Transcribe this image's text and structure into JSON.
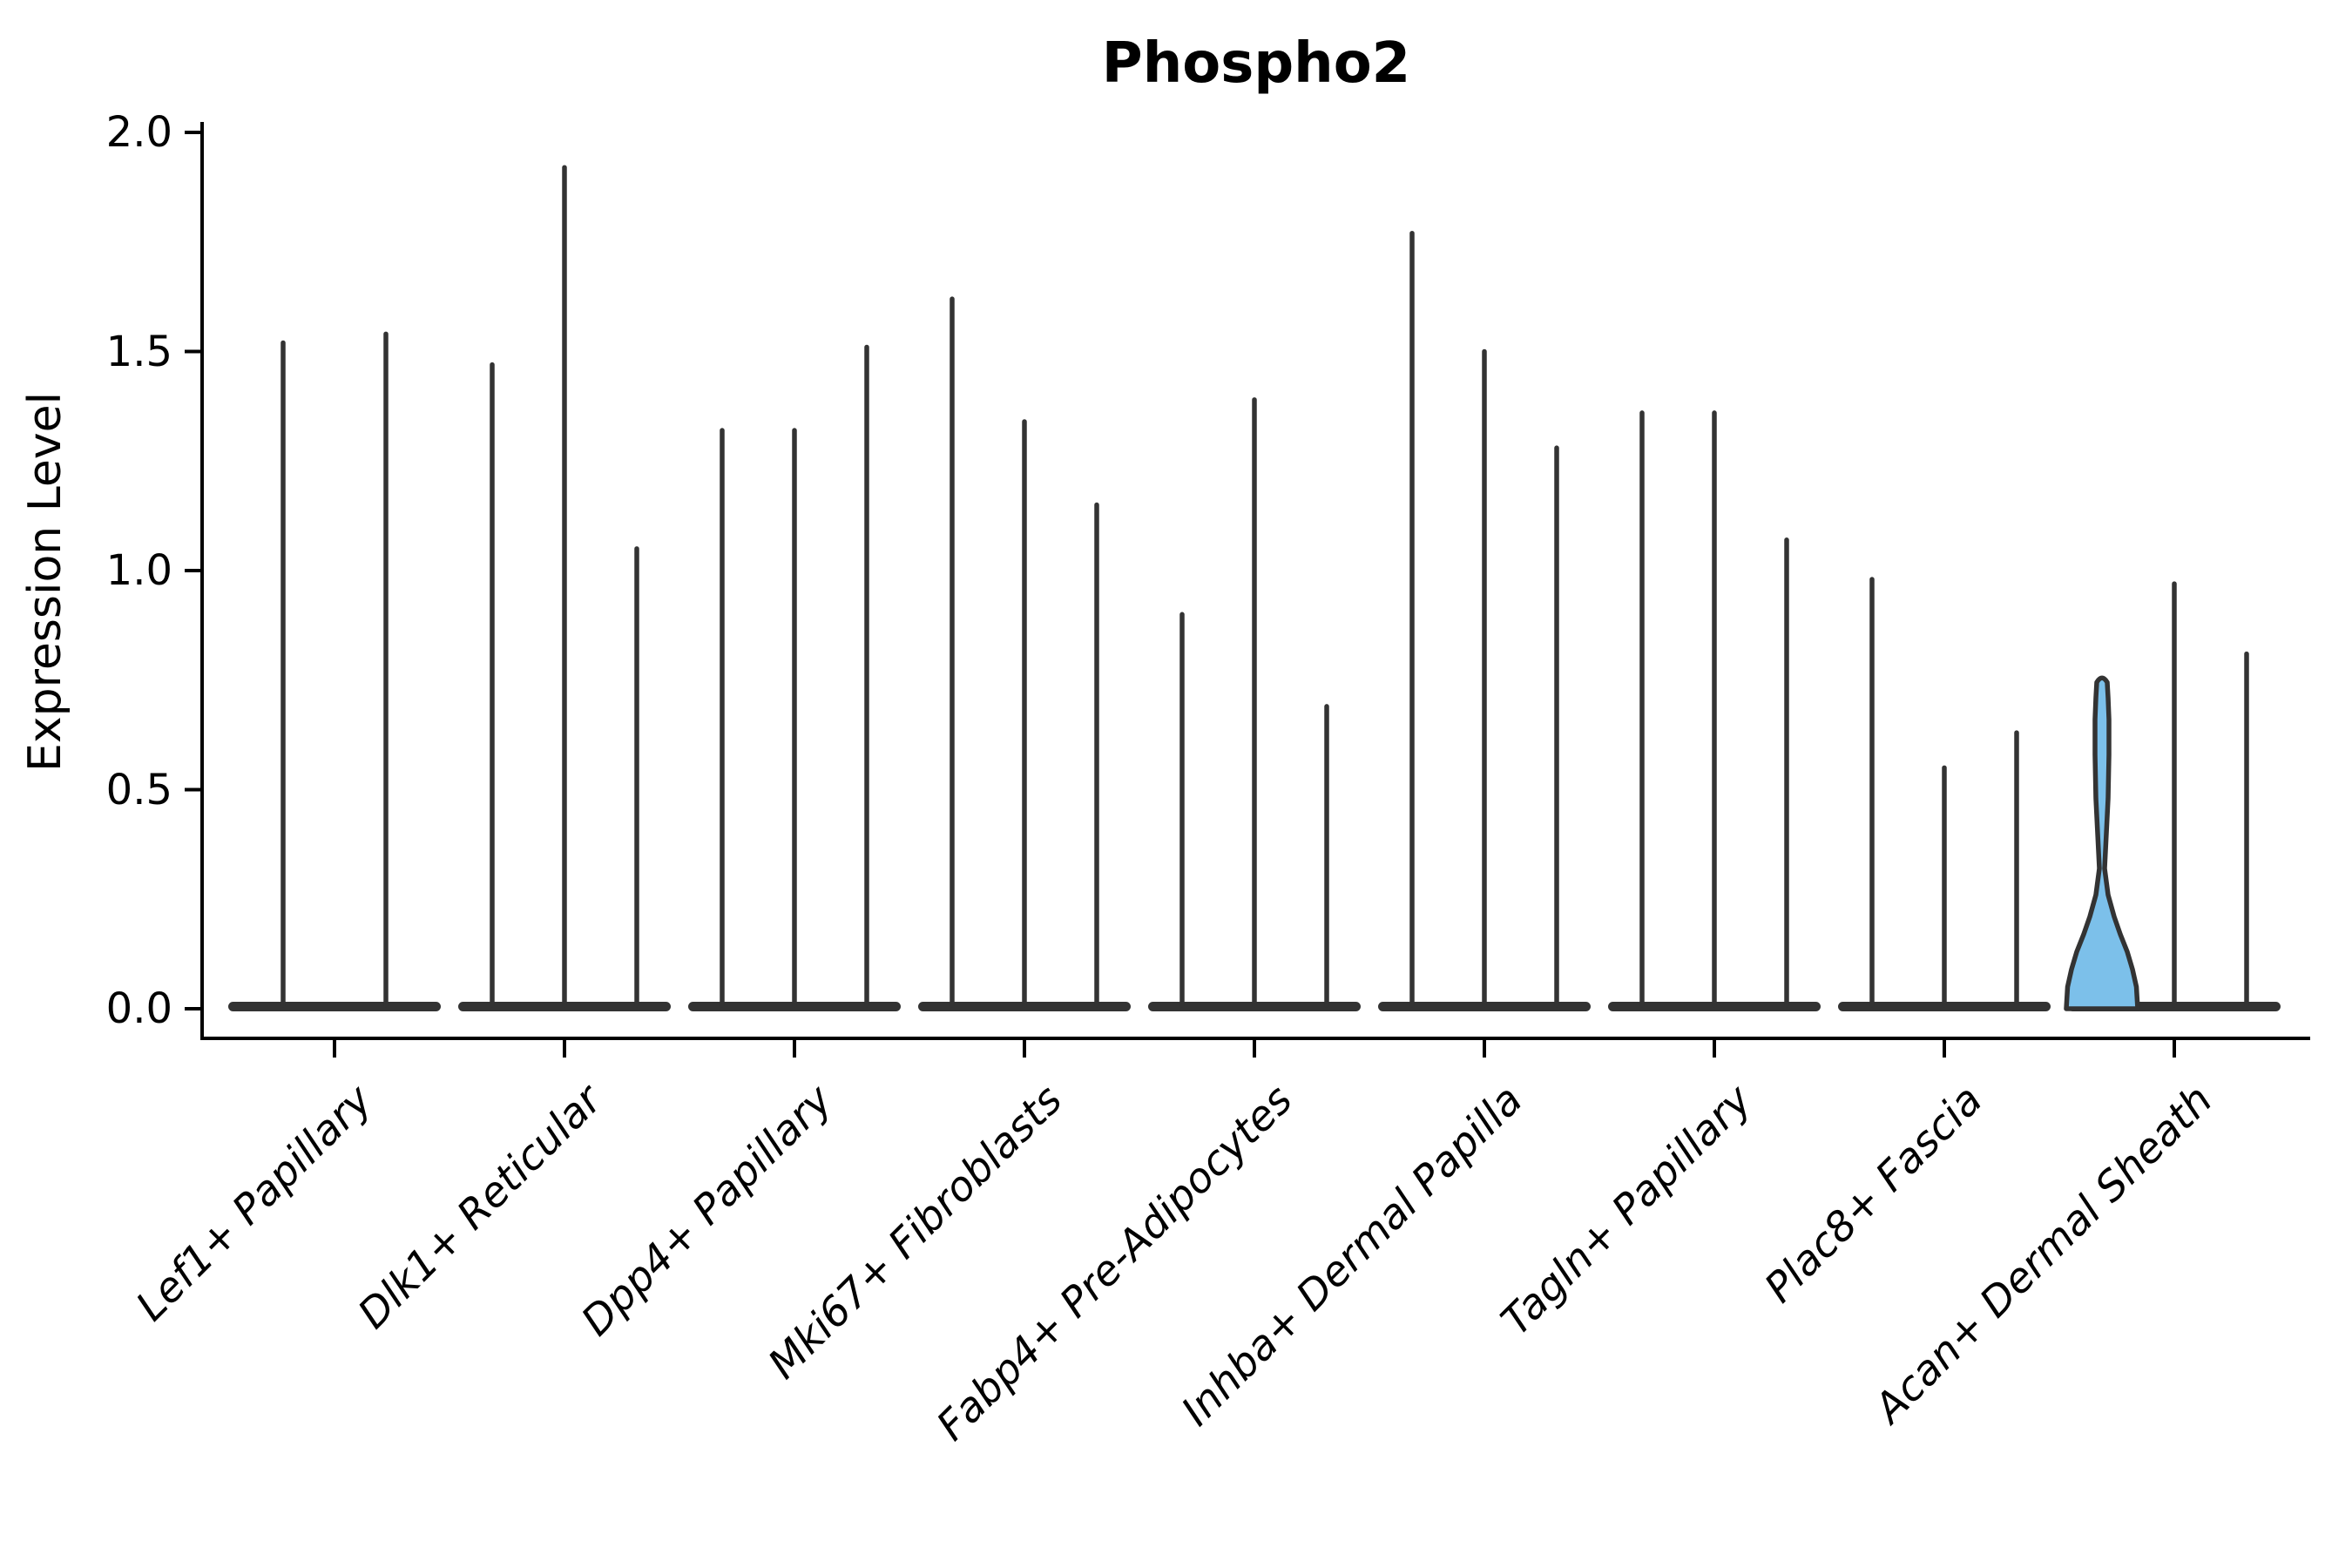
{
  "chart_data": {
    "type": "violin",
    "title": "Phospho2",
    "ylabel": "Expression Level",
    "xlabel": "",
    "ylim": [
      0.0,
      2.0
    ],
    "yticks": [
      0.0,
      0.5,
      1.0,
      1.5,
      2.0
    ],
    "ytick_labels": [
      "0.0",
      "0.5",
      "1.0",
      "1.5",
      "2.0"
    ],
    "grid": false,
    "legend": "none",
    "categories": [
      "Lef1+ Papillary",
      "Dlk1+ Reticular",
      "Dpp4+ Papillary",
      "Mki67+ Fibroblasts",
      "Fabp4+ Pre-Adipocytes",
      "Inhba+ Dermal Papilla",
      "Tagln+ Papillary",
      "Plac8+ Fascia",
      "Acan+ Dermal Sheath"
    ],
    "series": [
      {
        "category": "Lef1+ Papillary",
        "violin_max": [
          1.52,
          1.54
        ]
      },
      {
        "category": "Dlk1+ Reticular",
        "violin_max": [
          1.47,
          1.92,
          1.05
        ]
      },
      {
        "category": "Dpp4+ Papillary",
        "violin_max": [
          1.32,
          1.32,
          1.51
        ]
      },
      {
        "category": "Mki67+ Fibroblasts",
        "violin_max": [
          1.62,
          1.34,
          1.15
        ]
      },
      {
        "category": "Fabp4+ Pre-Adipocytes",
        "violin_max": [
          0.9,
          1.39,
          0.69
        ]
      },
      {
        "category": "Inhba+ Dermal Papilla",
        "violin_max": [
          1.77,
          1.5,
          1.28
        ]
      },
      {
        "category": "Tagln+ Papillary",
        "violin_max": [
          1.36,
          1.36,
          1.07
        ]
      },
      {
        "category": "Plac8+ Fascia",
        "violin_max": [
          0.98,
          0.55,
          0.63
        ]
      },
      {
        "category": "Acan+ Dermal Sheath",
        "violin_max": [
          0.75,
          0.97,
          0.81
        ]
      }
    ],
    "highlighted_violin": {
      "category": "Acan+ Dermal Sheath",
      "violin_index": 0,
      "max": 0.75,
      "waist_value": 0.32,
      "profile_value_halfwidth": [
        [
          0.0,
          41
        ],
        [
          0.05,
          39.5
        ],
        [
          0.09,
          35
        ],
        [
          0.13,
          29
        ],
        [
          0.17,
          21
        ],
        [
          0.21,
          14
        ],
        [
          0.26,
          7
        ],
        [
          0.32,
          3
        ],
        [
          0.4,
          5
        ],
        [
          0.48,
          7
        ],
        [
          0.58,
          8
        ],
        [
          0.66,
          8
        ],
        [
          0.71,
          7
        ],
        [
          0.745,
          6
        ]
      ]
    },
    "colors": {
      "violin_line": "#333333",
      "axis": "#000000",
      "highlight_fill": "#7CC0EA",
      "background": "#FFFFFF",
      "text": "#000000"
    }
  }
}
